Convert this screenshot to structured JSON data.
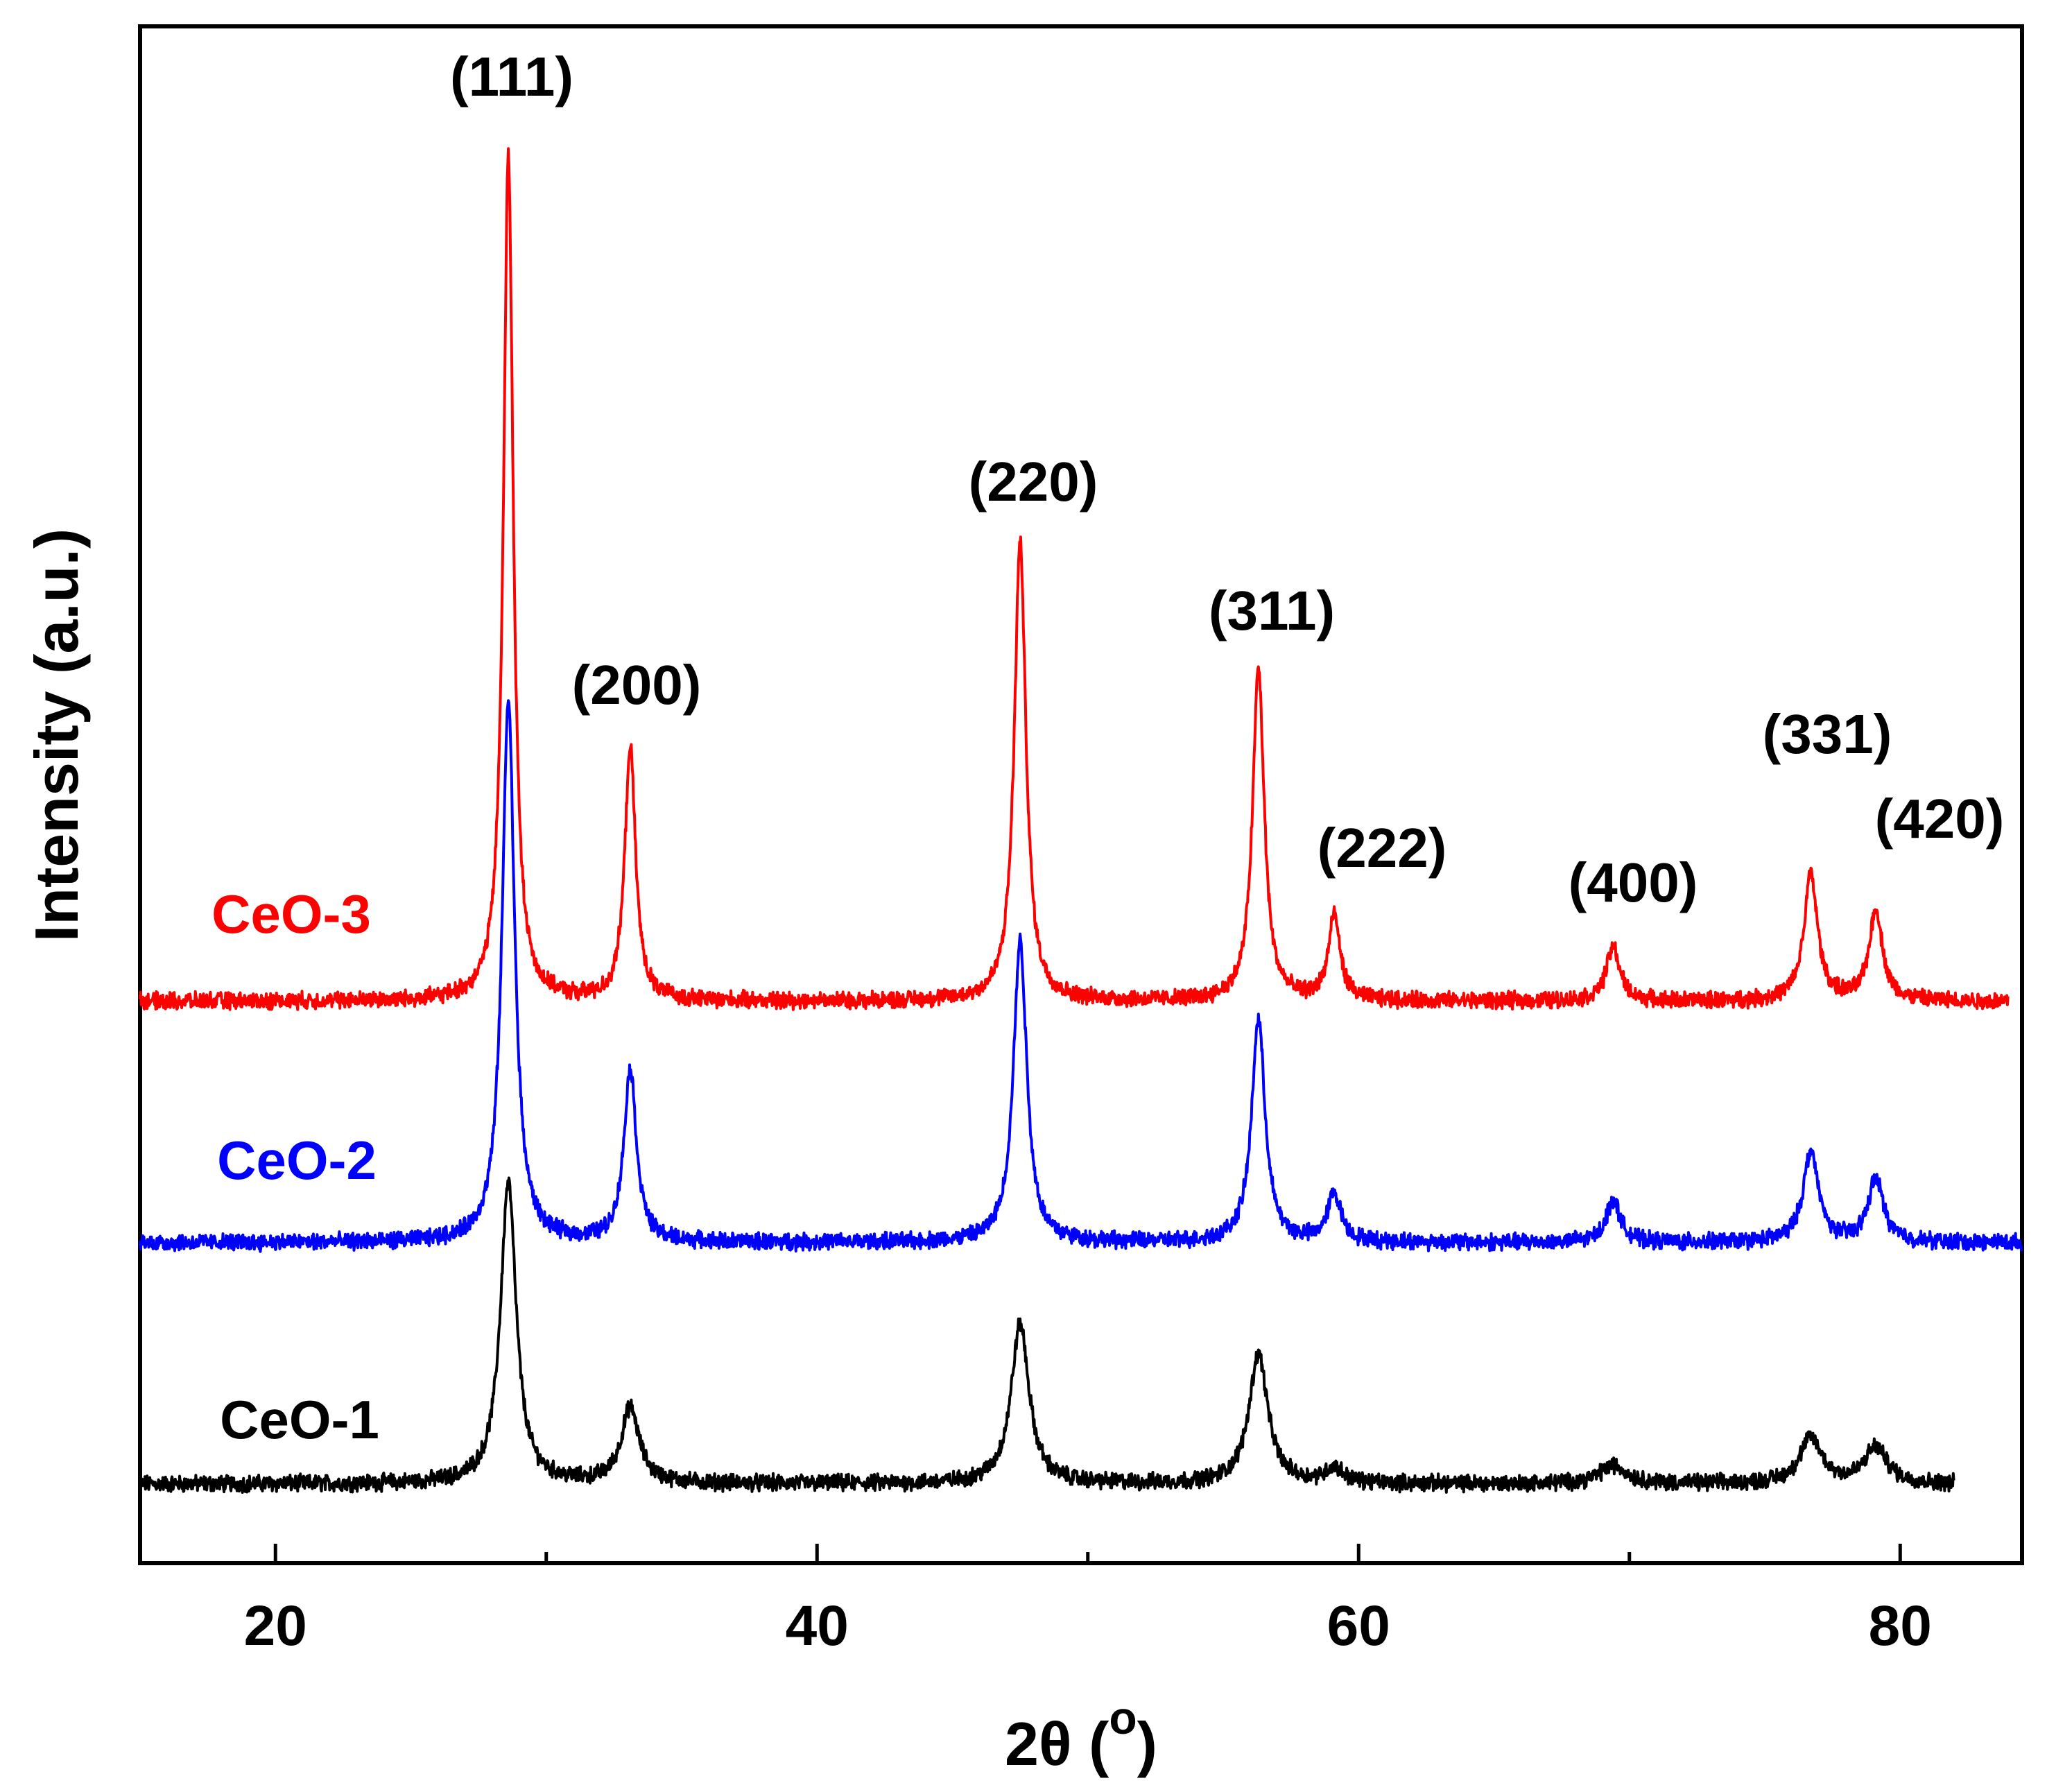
{
  "chart_data": {
    "type": "line",
    "title": "",
    "xlabel": "2θ (",
    "xlabel_sup": "o",
    "xlabel_close": ")",
    "ylabel": "Intensity (a.u.)",
    "xlim": [
      15,
      84.5
    ],
    "x_ticks": [
      20,
      40,
      60,
      80
    ],
    "x_minor_ticks": [
      30,
      50,
      70
    ],
    "y_ticks": [],
    "grid": false,
    "peaks": [
      {
        "label": "(111)",
        "x": 28.6
      },
      {
        "label": "(200)",
        "x": 33.1
      },
      {
        "label": "(220)",
        "x": 47.5
      },
      {
        "label": "(311)",
        "x": 56.3
      },
      {
        "label": "(222)",
        "x": 59.1
      },
      {
        "label": "(400)",
        "x": 69.4
      },
      {
        "label": "(331)",
        "x": 76.7
      },
      {
        "label": "(420)",
        "x": 79.1
      }
    ],
    "series": [
      {
        "name": "CeO-1",
        "color": "#000000",
        "x_range": [
          15,
          82
        ],
        "baseline": 0.0,
        "peaks": [
          {
            "x": 28.6,
            "height": 1.0,
            "width": 0.35
          },
          {
            "x": 33.1,
            "height": 0.25,
            "width": 0.4
          },
          {
            "x": 47.5,
            "height": 0.53,
            "width": 0.4
          },
          {
            "x": 56.3,
            "height": 0.43,
            "width": 0.42
          },
          {
            "x": 59.1,
            "height": 0.05,
            "width": 0.4
          },
          {
            "x": 69.4,
            "height": 0.06,
            "width": 0.6
          },
          {
            "x": 76.7,
            "height": 0.15,
            "width": 0.5
          },
          {
            "x": 79.1,
            "height": 0.12,
            "width": 0.5
          }
        ]
      },
      {
        "name": "CeO-2",
        "color": "#0000ff",
        "x_range": [
          15,
          84.5
        ],
        "baseline": 0.8,
        "peaks": [
          {
            "x": 28.6,
            "height": 1.8,
            "width": 0.28
          },
          {
            "x": 33.1,
            "height": 0.57,
            "width": 0.28
          },
          {
            "x": 47.5,
            "height": 1.0,
            "width": 0.3
          },
          {
            "x": 56.3,
            "height": 0.74,
            "width": 0.3
          },
          {
            "x": 59.1,
            "height": 0.16,
            "width": 0.3
          },
          {
            "x": 69.4,
            "height": 0.14,
            "width": 0.32
          },
          {
            "x": 76.7,
            "height": 0.3,
            "width": 0.34
          },
          {
            "x": 79.1,
            "height": 0.21,
            "width": 0.34
          }
        ]
      },
      {
        "name": "CeO-3",
        "color": "#ff0000",
        "x_range": [
          15,
          84
        ],
        "baseline": 1.6,
        "peaks": [
          {
            "x": 28.6,
            "height": 2.8,
            "width": 0.22
          },
          {
            "x": 33.1,
            "height": 0.84,
            "width": 0.24
          },
          {
            "x": 47.5,
            "height": 1.52,
            "width": 0.26
          },
          {
            "x": 56.3,
            "height": 1.1,
            "width": 0.26
          },
          {
            "x": 59.1,
            "height": 0.28,
            "width": 0.26
          },
          {
            "x": 69.4,
            "height": 0.18,
            "width": 0.3
          },
          {
            "x": 76.7,
            "height": 0.42,
            "width": 0.3
          },
          {
            "x": 79.1,
            "height": 0.3,
            "width": 0.3
          }
        ]
      }
    ]
  }
}
